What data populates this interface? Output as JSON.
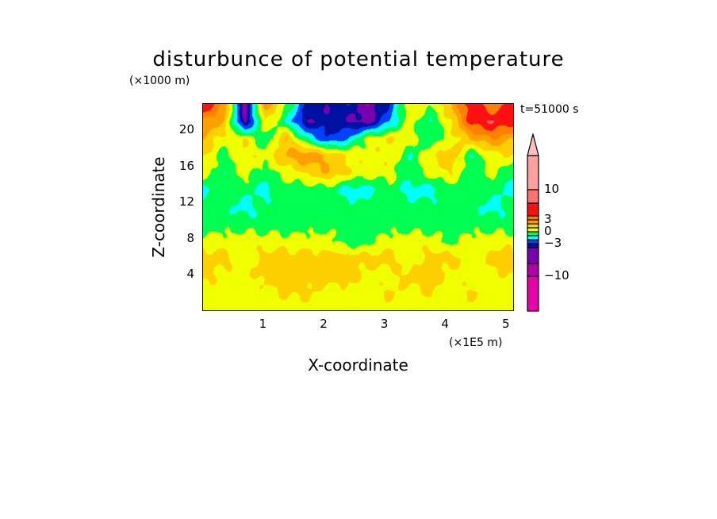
{
  "chart_data": {
    "type": "heatmap",
    "title": "disturbunce of potential temperature",
    "xlabel": "X-coordinate",
    "ylabel": "Z-coordinate",
    "x_unit": "(×1E5 m)",
    "y_unit": "(×1000 m)",
    "annotation": "t=51000 s",
    "xlim": [
      0,
      5.13
    ],
    "ylim": [
      0,
      23
    ],
    "x_ticks": [
      1,
      2,
      3,
      4,
      5
    ],
    "x_tick_labels": [
      "1",
      "2",
      "3",
      "4",
      "5"
    ],
    "y_ticks": [
      4,
      8,
      12,
      16,
      20
    ],
    "y_tick_labels": [
      "4",
      "8",
      "12",
      "16",
      "20"
    ],
    "colorbar": {
      "levels": [
        -10,
        -5,
        -4,
        -3,
        -2,
        -1,
        0,
        1,
        2,
        3,
        4,
        5,
        10
      ],
      "colors": [
        "#e800a8",
        "#b000a8",
        "#7800b0",
        "#0010a0",
        "#0040ff",
        "#00ffff",
        "#00ff50",
        "#f0ff00",
        "#ffd000",
        "#ffa000",
        "#ff8000",
        "#ff1010",
        "#ff7070",
        "#ffa0a0"
      ],
      "extend_color": "#ffc0c0",
      "labels": [
        {
          "value": 10,
          "text": "10"
        },
        {
          "value": 3,
          "text": "3"
        },
        {
          "value": 0,
          "text": "0"
        },
        {
          "value": -3,
          "text": "−3"
        },
        {
          "value": -10,
          "text": "−10"
        }
      ]
    },
    "grid_note": "approximate coarse field, rows top (z=23) to bottom (z=0), columns x=0..5.13",
    "grid": [
      [
        5,
        3,
        -5,
        3,
        0,
        -3,
        -4,
        -3,
        -5,
        -3,
        1,
        0,
        2,
        5,
        3,
        5
      ],
      [
        3,
        2,
        -4.5,
        1,
        -1,
        -4,
        -3.5,
        -4,
        -4.5,
        -2,
        0.5,
        -1,
        1,
        4.5,
        5,
        4.5
      ],
      [
        2,
        0.5,
        1,
        -1,
        2,
        -1,
        -3,
        -2,
        0.5,
        1,
        0.5,
        -1,
        0.5,
        2,
        3,
        2
      ],
      [
        1,
        -0.5,
        1,
        0.5,
        2,
        3,
        2,
        1,
        0.5,
        1,
        -1,
        1,
        2,
        -1,
        0.5,
        1
      ],
      [
        0.5,
        -1,
        0.5,
        -0.5,
        0.5,
        1,
        2,
        1,
        0.5,
        0.5,
        -0.5,
        0.5,
        1,
        -1,
        0.5,
        -1
      ],
      [
        -1.5,
        -0.5,
        -0.5,
        -1.5,
        -0.5,
        -0.5,
        -0.5,
        -1.5,
        -1.5,
        -0.5,
        -1.5,
        -1.5,
        -0.5,
        -0.5,
        -0.5,
        -1.5
      ],
      [
        -0.5,
        -0.5,
        -1.5,
        -0.5,
        -0.5,
        -0.5,
        -0.5,
        -0.5,
        -0.5,
        -0.5,
        -0.5,
        -0.5,
        -0.5,
        -0.5,
        -1.5,
        -0.5
      ],
      [
        -0.5,
        -0.5,
        -0.5,
        -0.5,
        -0.5,
        -0.5,
        -0.5,
        -0.5,
        -0.5,
        -0.5,
        -0.5,
        -0.5,
        -0.5,
        -0.5,
        -0.5,
        -0.5
      ],
      [
        0.5,
        0.5,
        0.5,
        0.5,
        0.5,
        0.5,
        0.5,
        -0.5,
        -0.5,
        0.5,
        0.5,
        0.5,
        -0.5,
        0.5,
        0.5,
        0.5
      ],
      [
        1.5,
        1.5,
        0.5,
        1.5,
        1.5,
        1.5,
        1.5,
        1.5,
        1.5,
        1.5,
        0.5,
        1.5,
        1.5,
        0.5,
        1.5,
        1.5
      ],
      [
        1.5,
        0.5,
        0.5,
        1.5,
        1.5,
        1.5,
        1.5,
        1.5,
        0.5,
        0.5,
        1.5,
        1.5,
        0.5,
        0.5,
        0.5,
        1.2
      ],
      [
        0.5,
        0.5,
        0.5,
        0.5,
        1.2,
        1.2,
        0.5,
        0.5,
        0.5,
        1.2,
        0.5,
        1.2,
        0.5,
        1.2,
        0.5,
        0.5
      ],
      [
        0.5,
        0.5,
        0.5,
        0.5,
        0.5,
        0.5,
        0.5,
        0.5,
        0.5,
        0.5,
        0.5,
        0.5,
        0.5,
        0.5,
        0.5,
        0.5
      ]
    ]
  }
}
